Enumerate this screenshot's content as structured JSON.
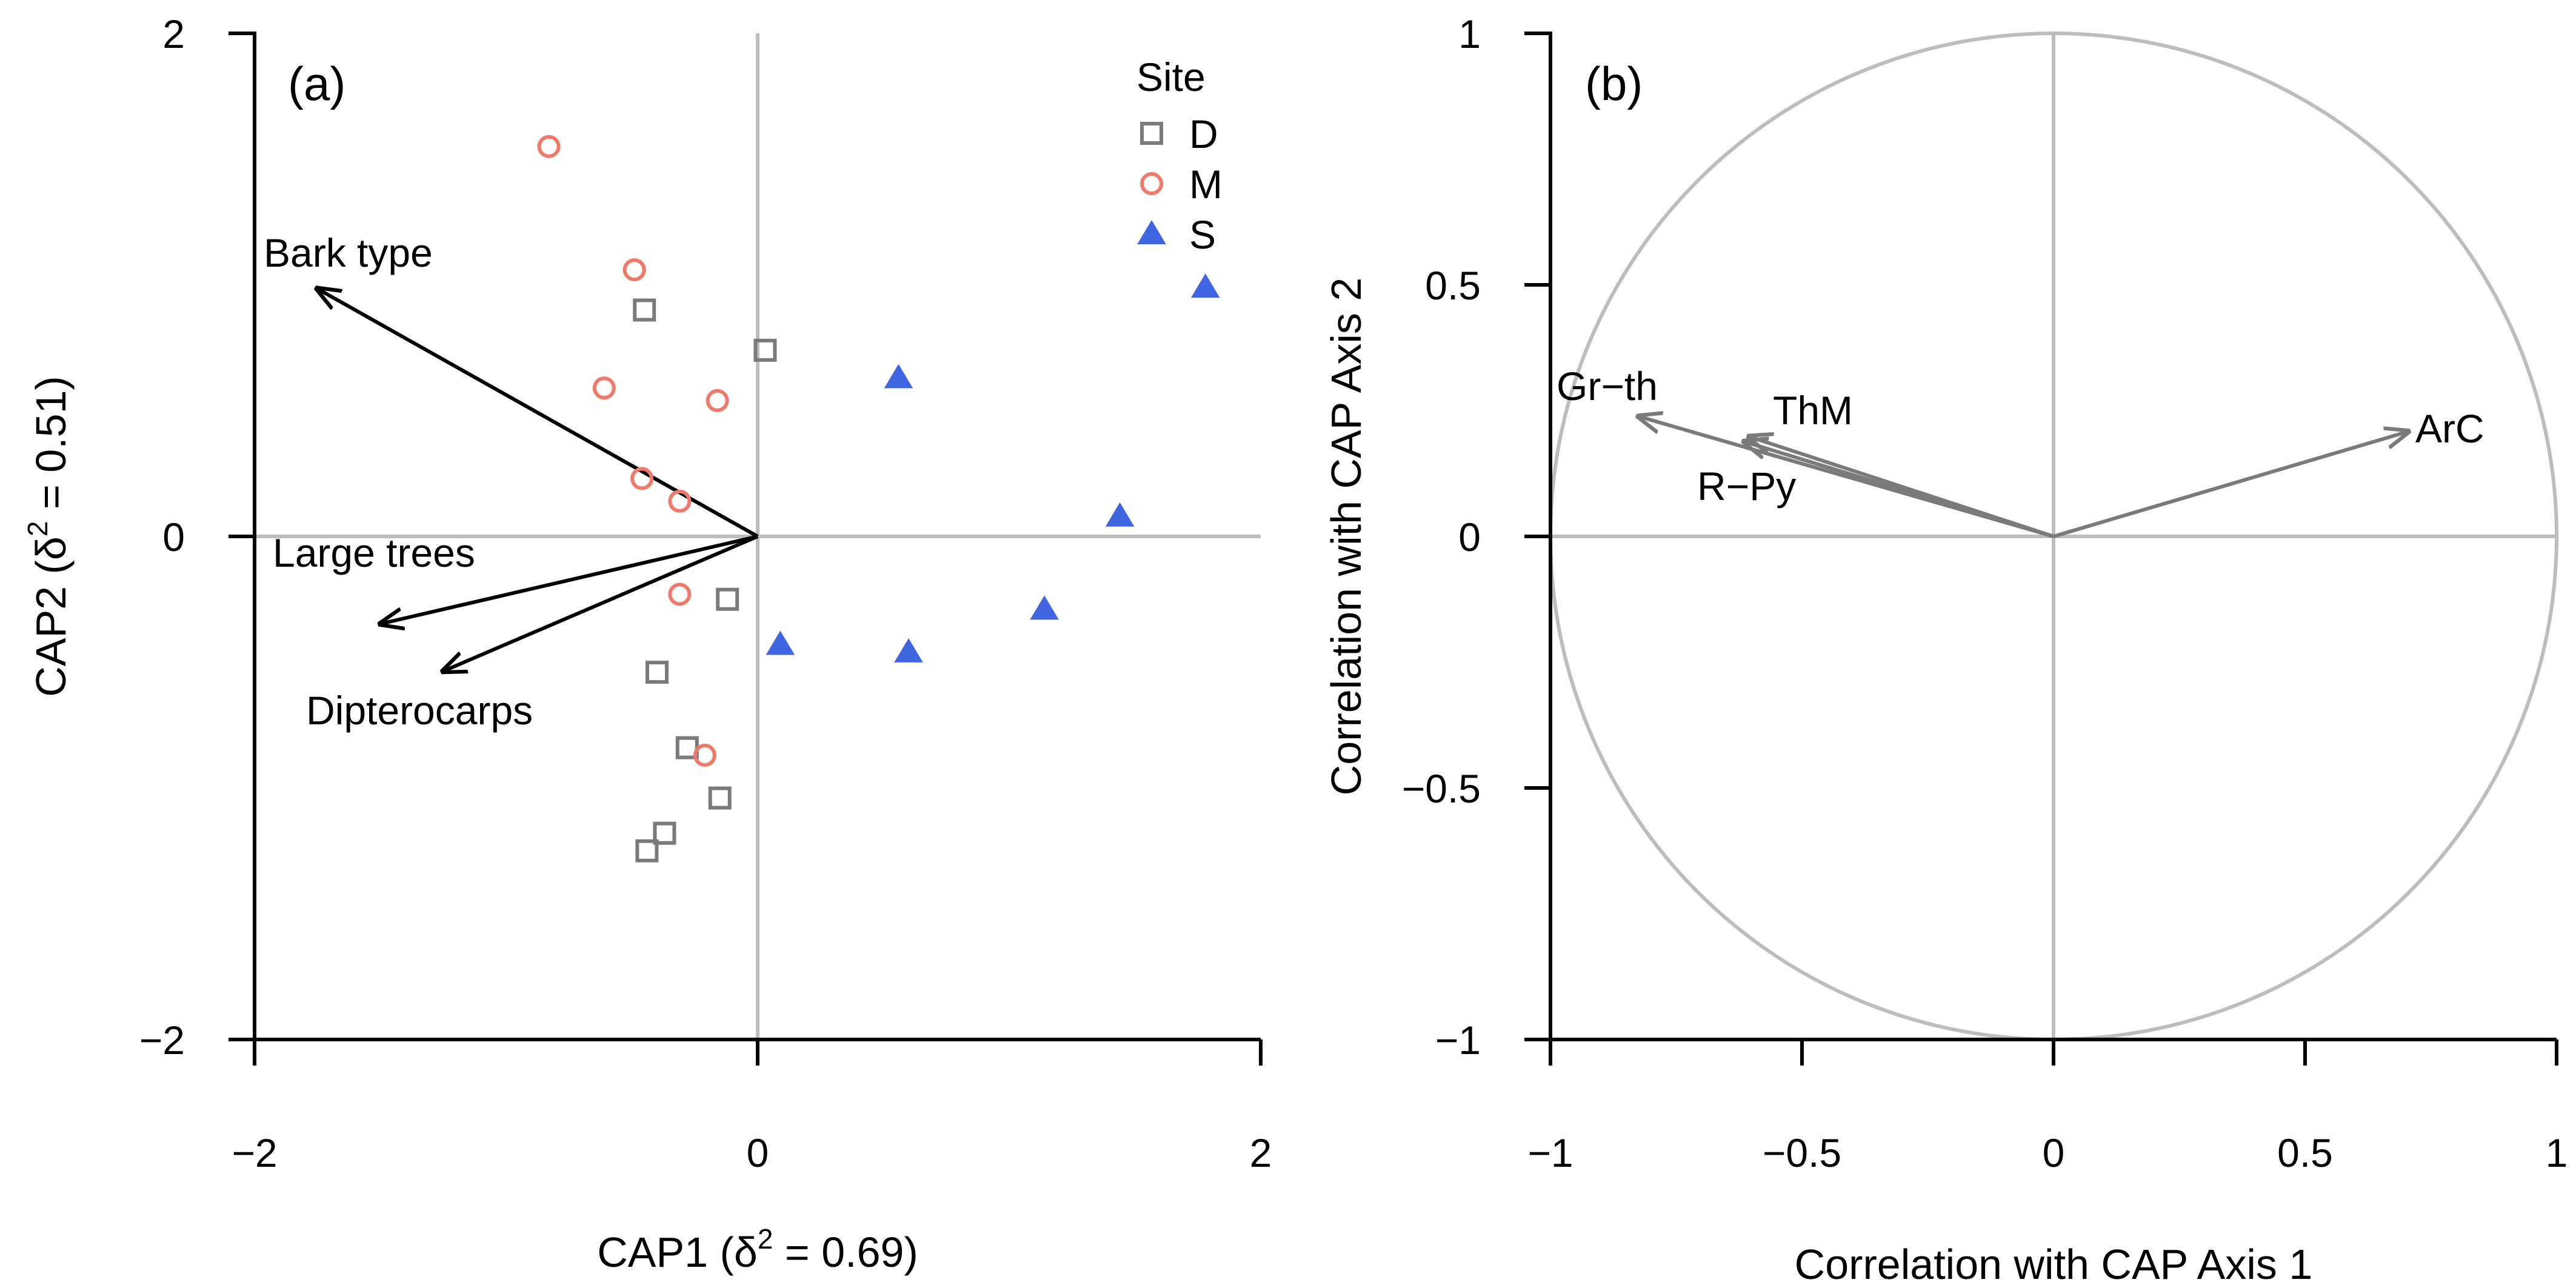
{
  "chart_data": [
    {
      "type": "scatter",
      "panel_label": "(a)",
      "xlabel_prefix": "CAP1 (δ",
      "xlabel_sup": "2",
      "xlabel_suffix": " = 0.69)",
      "ylabel_prefix": "CAP2 (δ",
      "ylabel_sup": "2",
      "ylabel_suffix": " = 0.51)",
      "xlim": [
        -2,
        2
      ],
      "ylim": [
        -2,
        2
      ],
      "xticks": [
        -2,
        0,
        2
      ],
      "yticks": [
        -2,
        0,
        2
      ],
      "legend": {
        "title": "Site",
        "position": "top-right",
        "entries": [
          {
            "label": "D",
            "marker": "square"
          },
          {
            "label": "M",
            "marker": "circle"
          },
          {
            "label": "S",
            "marker": "triangle"
          }
        ]
      },
      "colors": {
        "D": "#7a7a7a",
        "M": "#f07a6a",
        "S": "#3f66e0",
        "axis": "#bdbdbd",
        "arrow": "#000000"
      },
      "series": [
        {
          "name": "D",
          "points": [
            [
              -0.45,
              0.9
            ],
            [
              0.03,
              0.74
            ],
            [
              -0.12,
              -0.25
            ],
            [
              -0.4,
              -0.54
            ],
            [
              -0.28,
              -0.84
            ],
            [
              -0.15,
              -1.04
            ],
            [
              -0.37,
              -1.18
            ],
            [
              -0.44,
              -1.25
            ]
          ]
        },
        {
          "name": "M",
          "points": [
            [
              -0.83,
              1.55
            ],
            [
              -0.49,
              1.06
            ],
            [
              -0.61,
              0.59
            ],
            [
              -0.16,
              0.54
            ],
            [
              -0.46,
              0.23
            ],
            [
              -0.31,
              0.14
            ],
            [
              -0.31,
              -0.23
            ],
            [
              -0.21,
              -0.87
            ]
          ]
        },
        {
          "name": "S",
          "points": [
            [
              1.78,
              0.99
            ],
            [
              0.56,
              0.63
            ],
            [
              1.44,
              0.08
            ],
            [
              1.14,
              -0.29
            ],
            [
              0.09,
              -0.43
            ],
            [
              0.6,
              -0.46
            ]
          ]
        }
      ],
      "vectors": [
        {
          "label": "Bark type",
          "x": -1.76,
          "y": 0.99
        },
        {
          "label": "Large trees",
          "x": -1.51,
          "y": -0.35
        },
        {
          "label": "Dipterocarps",
          "x": -1.26,
          "y": -0.54
        }
      ]
    },
    {
      "type": "scatter",
      "panel_label": "(b)",
      "xlabel": "Correlation with CAP Axis 1",
      "ylabel": "Correlation with CAP Axis 2",
      "xlim": [
        -1,
        1
      ],
      "ylim": [
        -1,
        1
      ],
      "xticks": [
        -1,
        -0.5,
        0,
        0.5,
        1
      ],
      "xtick_labels": [
        "−1",
        "−0.5",
        "0",
        "0.5",
        "1"
      ],
      "yticks": [
        -1,
        -0.5,
        0,
        0.5,
        1
      ],
      "ytick_labels": [
        "−1",
        "−0.5",
        "0",
        "0.5",
        "1"
      ],
      "unit_circle": true,
      "colors": {
        "arrow": "#7a7a7a",
        "circle": "#bdbdbd"
      },
      "vectors": [
        {
          "label": "Gr−th",
          "x": -0.83,
          "y": 0.24
        },
        {
          "label": "ThM",
          "x": -0.61,
          "y": 0.2
        },
        {
          "label": "R−Py",
          "x": -0.62,
          "y": 0.19
        },
        {
          "label": "ArC",
          "x": 0.71,
          "y": 0.21
        }
      ]
    }
  ]
}
